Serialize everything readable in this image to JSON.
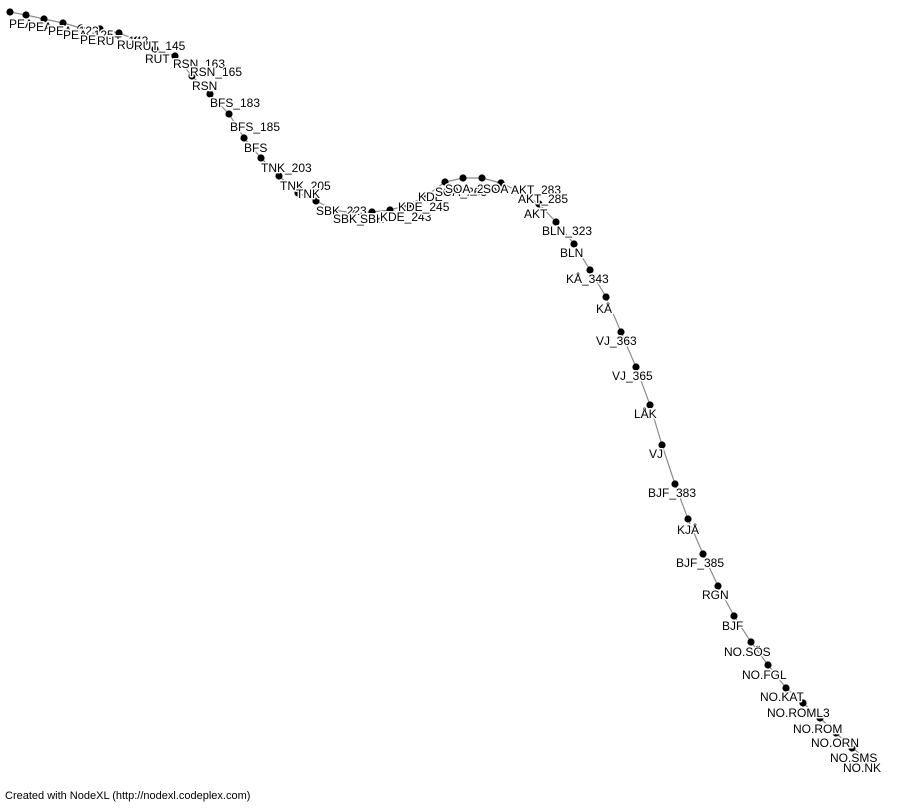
{
  "graph": {
    "node_color": "#000000",
    "edge_color": "#8c8c8c",
    "nodes": [
      {
        "id": "n1",
        "label": "PEA"
      },
      {
        "id": "n2",
        "label": "PEA"
      },
      {
        "id": "n3",
        "label": "PEA_123"
      },
      {
        "id": "n4",
        "label": "PEA_125"
      },
      {
        "id": "n5",
        "label": "PEA"
      },
      {
        "id": "n6",
        "label": "RUT_143"
      },
      {
        "id": "n7",
        "label": "RUT"
      },
      {
        "id": "n8",
        "label": "RUT_145"
      },
      {
        "id": "n9",
        "label": "RUT"
      },
      {
        "id": "n10",
        "label": "RSN_163"
      },
      {
        "id": "n11",
        "label": "RSN_165"
      },
      {
        "id": "n12",
        "label": "RSN"
      },
      {
        "id": "n13",
        "label": "BFS_183"
      },
      {
        "id": "n14",
        "label": "BFS_185"
      },
      {
        "id": "n15",
        "label": "BFS"
      },
      {
        "id": "n16",
        "label": "TNK_203"
      },
      {
        "id": "n17",
        "label": "TNK_205"
      },
      {
        "id": "n18",
        "label": "TNK"
      },
      {
        "id": "n19",
        "label": "SBK_223"
      },
      {
        "id": "n20",
        "label": "SBK_225"
      },
      {
        "id": "n21",
        "label": "SBK"
      },
      {
        "id": "n22",
        "label": "KDE_243"
      },
      {
        "id": "n23",
        "label": "KDE_245"
      },
      {
        "id": "n24",
        "label": "KDE"
      },
      {
        "id": "n25",
        "label": "SOA_263"
      },
      {
        "id": "n26",
        "label": "SOA_265"
      },
      {
        "id": "n27",
        "label": "SOA"
      },
      {
        "id": "n28",
        "label": "AKT_283"
      },
      {
        "id": "n29",
        "label": "AKT_285"
      },
      {
        "id": "n30",
        "label": "AKT"
      },
      {
        "id": "n31",
        "label": "BLN_323"
      },
      {
        "id": "n32",
        "label": "BLN"
      },
      {
        "id": "n33",
        "label": "KÅ_343"
      },
      {
        "id": "n34",
        "label": "KÅ"
      },
      {
        "id": "n35",
        "label": "VJ_363"
      },
      {
        "id": "n36",
        "label": "VJ_365"
      },
      {
        "id": "n37",
        "label": "LÅK"
      },
      {
        "id": "n38",
        "label": "VJ"
      },
      {
        "id": "n39",
        "label": "BJF_383"
      },
      {
        "id": "n40",
        "label": "KJÅ"
      },
      {
        "id": "n41",
        "label": "BJF_385"
      },
      {
        "id": "n42",
        "label": "RGN"
      },
      {
        "id": "n43",
        "label": "BJF"
      },
      {
        "id": "n44",
        "label": "NO.SÖS"
      },
      {
        "id": "n45",
        "label": "NO.FGL"
      },
      {
        "id": "n46",
        "label": "NO.KAT"
      },
      {
        "id": "n47",
        "label": "NO.ROML3"
      },
      {
        "id": "n48",
        "label": "NO.ROM"
      },
      {
        "id": "n49",
        "label": "NO.ORN"
      },
      {
        "id": "n50",
        "label": "NO.SMS"
      },
      {
        "id": "n51",
        "label": "NO.NK"
      }
    ]
  },
  "footer": {
    "credit": "Created with NodeXL (http://nodexl.codeplex.com)"
  }
}
